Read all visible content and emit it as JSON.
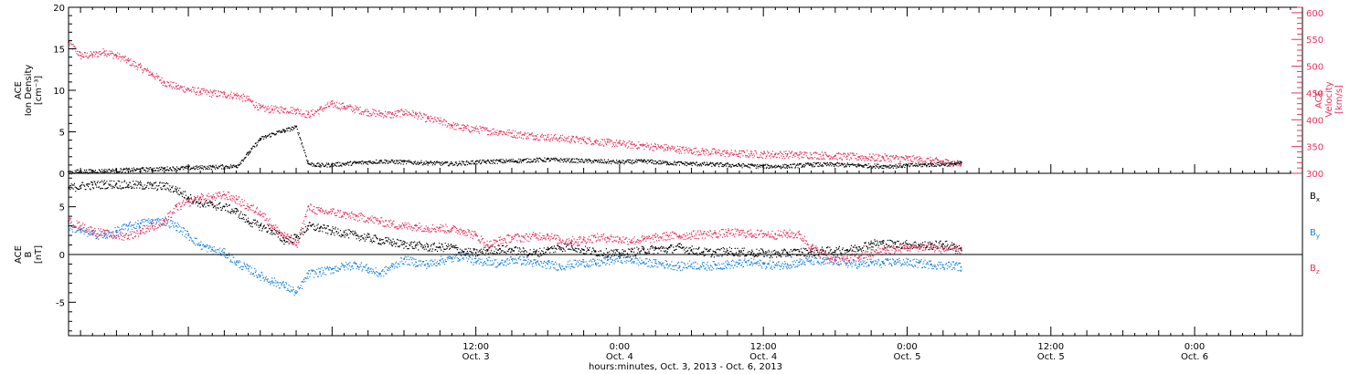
{
  "chart_data": [
    {
      "type": "scatter",
      "panel": "top",
      "ylabel_left": [
        "ACE",
        "Ion Density",
        "[cm⁻³]"
      ],
      "ylabel_right": [
        "ACE",
        "Velocity",
        "[km/s]"
      ],
      "ylim_left": [
        0,
        20
      ],
      "ylim_right": [
        300,
        610
      ],
      "yticks_left": [
        "0",
        "5",
        "10",
        "15",
        "20"
      ],
      "yticks_right": [
        "300",
        "350",
        "400",
        "450",
        "500",
        "550",
        "600"
      ],
      "series": [
        {
          "axis": "left",
          "color": "#000000",
          "x": [
            0,
            2,
            4,
            6,
            8,
            10,
            12,
            14,
            15,
            16,
            17,
            18,
            19,
            20,
            21,
            22,
            24,
            26,
            28,
            30,
            32,
            34,
            36,
            38,
            40,
            42,
            44,
            46,
            48,
            50,
            52,
            54,
            56,
            58,
            60,
            62,
            64,
            66,
            68,
            70,
            72,
            74,
            74.5
          ],
          "values": [
            0.2,
            0.3,
            0.4,
            0.5,
            0.6,
            0.7,
            0.8,
            0.9,
            2.5,
            4.2,
            4.8,
            5.2,
            5.6,
            1.2,
            1.0,
            1.1,
            1.3,
            1.5,
            1.4,
            1.3,
            1.2,
            1.4,
            1.5,
            1.6,
            1.7,
            1.6,
            1.5,
            1.4,
            1.5,
            1.3,
            1.2,
            1.1,
            1.0,
            0.9,
            0.9,
            1.1,
            1.1,
            1.0,
            0.9,
            1.0,
            1.1,
            1.2,
            1.3
          ]
        },
        {
          "axis": "right",
          "color": "#e8335f",
          "x": [
            0,
            1,
            2,
            3,
            4,
            5,
            6,
            7,
            8,
            9,
            10,
            11,
            12,
            13,
            14,
            15,
            16,
            17,
            18,
            19,
            20,
            21,
            22,
            23,
            24,
            25,
            26,
            27,
            28,
            29,
            30,
            31,
            32,
            33,
            34,
            35,
            36,
            37,
            38,
            39,
            40,
            41,
            42,
            43,
            44,
            45,
            46,
            47,
            48,
            49,
            50,
            51,
            52,
            53,
            54,
            55,
            56,
            57,
            58,
            59,
            60,
            61,
            62,
            63,
            64,
            65,
            66,
            67,
            68,
            69,
            70,
            71,
            72,
            73,
            74,
            74.5
          ],
          "values": [
            545,
            520,
            522,
            528,
            520,
            510,
            498,
            485,
            470,
            462,
            457,
            453,
            450,
            448,
            446,
            438,
            422,
            420,
            420,
            418,
            410,
            420,
            430,
            425,
            420,
            415,
            412,
            410,
            415,
            410,
            402,
            398,
            390,
            385,
            383,
            380,
            378,
            375,
            372,
            370,
            368,
            366,
            364,
            363,
            360,
            358,
            356,
            354,
            352,
            350,
            348,
            345,
            343,
            341,
            340,
            338,
            337,
            337,
            336,
            336,
            336,
            335,
            335,
            334,
            333,
            332,
            331,
            330,
            330,
            329,
            328,
            326,
            324,
            322,
            320,
            316
          ]
        }
      ]
    },
    {
      "type": "scatter",
      "panel": "bottom",
      "ylabel_left": [
        "ACE",
        "B",
        "[nT]"
      ],
      "ylim": [
        -8.5,
        8.5
      ],
      "yticks": [
        "-5",
        "0",
        "5"
      ],
      "legend": [
        "Bₓ",
        "Bᵧ",
        "B_z"
      ],
      "legend_labels": [
        [
          "B",
          "x"
        ],
        [
          "B",
          "y"
        ],
        [
          "B",
          "z"
        ]
      ],
      "series": [
        {
          "name": "Bx",
          "color": "#000000",
          "x": [
            0,
            1,
            2,
            3,
            4,
            5,
            6,
            7,
            8,
            9,
            10,
            11,
            12,
            13,
            14,
            15,
            16,
            17,
            18,
            19,
            20,
            21,
            22,
            23,
            24,
            25,
            26,
            27,
            28,
            29,
            30,
            31,
            32,
            33,
            34,
            35,
            36,
            37,
            38,
            39,
            40,
            41,
            42,
            43,
            44,
            45,
            46,
            47,
            48,
            49,
            50,
            51,
            52,
            53,
            54,
            55,
            56,
            57,
            58,
            59,
            60,
            61,
            62,
            63,
            64,
            65,
            66,
            67,
            68,
            69,
            70,
            71,
            72,
            73,
            74,
            74.5
          ],
          "values": [
            7.0,
            7.2,
            7.3,
            7.4,
            7.4,
            7.3,
            7.3,
            7.2,
            7.2,
            6.8,
            6.0,
            5.4,
            5.2,
            5.0,
            4.5,
            3.5,
            3.0,
            2.5,
            1.5,
            1.8,
            3.0,
            2.8,
            2.5,
            2.3,
            2.0,
            1.8,
            1.5,
            1.3,
            1.1,
            1.0,
            0.8,
            0.8,
            0.8,
            0.3,
            0.2,
            0.5,
            0.6,
            0.5,
            0.3,
            0.2,
            0.5,
            0.8,
            0.9,
            0.5,
            0.3,
            0.2,
            0.1,
            0.3,
            0.5,
            0.6,
            0.6,
            0.8,
            0.5,
            0.3,
            0.2,
            0.4,
            0.3,
            0.2,
            0.2,
            0.1,
            0.2,
            0.3,
            0.3,
            0.4,
            0.4,
            0.5,
            0.8,
            1.2,
            1.2,
            1.1,
            1.1,
            1.0,
            1.0,
            1.1,
            0.8,
            0.7
          ]
        },
        {
          "name": "By",
          "color": "#1a82dc",
          "x": [
            0,
            1,
            2,
            3,
            4,
            5,
            6,
            7,
            8,
            9,
            10,
            11,
            12,
            13,
            14,
            15,
            16,
            17,
            18,
            19,
            20,
            21,
            22,
            23,
            24,
            25,
            26,
            27,
            28,
            29,
            30,
            31,
            32,
            33,
            34,
            35,
            36,
            37,
            38,
            39,
            40,
            41,
            42,
            43,
            44,
            45,
            46,
            47,
            48,
            49,
            50,
            51,
            52,
            53,
            54,
            55,
            56,
            57,
            58,
            59,
            60,
            61,
            62,
            63,
            64,
            65,
            66,
            67,
            68,
            69,
            70,
            71,
            72,
            73,
            74,
            74.5
          ],
          "values": [
            3.0,
            2.5,
            2.2,
            2.0,
            2.5,
            3.0,
            3.3,
            3.5,
            3.5,
            3.0,
            2.0,
            1.0,
            0.5,
            0.2,
            -0.8,
            -1.5,
            -2.2,
            -2.8,
            -3.2,
            -4.0,
            -2.0,
            -1.8,
            -1.5,
            -1.2,
            -1.0,
            -1.5,
            -2.0,
            -1.2,
            -0.5,
            -0.8,
            -1.0,
            -0.6,
            -0.4,
            0.0,
            -0.8,
            -0.6,
            -1.0,
            -0.5,
            -0.6,
            -0.9,
            -1.0,
            -1.2,
            -1.0,
            -0.8,
            -0.9,
            -0.6,
            -0.4,
            -0.5,
            -0.8,
            -0.9,
            -1.0,
            -1.2,
            -1.0,
            -1.2,
            -1.1,
            -1.0,
            -0.9,
            -0.8,
            -1.0,
            -1.1,
            -1.0,
            -0.8,
            -0.6,
            -0.8,
            -0.6,
            -0.9,
            -1.0,
            -0.8,
            -0.9,
            -0.7,
            -0.8,
            -0.9,
            -1.0,
            -1.1,
            -1.1,
            -1.3
          ]
        },
        {
          "name": "Bz",
          "color": "#e8335f",
          "x": [
            0,
            1,
            2,
            3,
            4,
            5,
            6,
            7,
            8,
            9,
            10,
            11,
            12,
            13,
            14,
            15,
            16,
            17,
            18,
            19,
            20,
            21,
            22,
            23,
            24,
            25,
            26,
            27,
            28,
            29,
            30,
            31,
            32,
            33,
            34,
            35,
            36,
            37,
            38,
            39,
            40,
            41,
            42,
            43,
            44,
            45,
            46,
            47,
            48,
            49,
            50,
            51,
            52,
            53,
            54,
            55,
            56,
            57,
            58,
            59,
            60,
            61,
            62,
            63,
            64,
            65,
            66,
            67,
            68,
            69,
            70,
            71,
            72,
            73,
            74,
            74.5
          ],
          "values": [
            3.5,
            3.0,
            2.5,
            2.2,
            2.0,
            2.0,
            2.5,
            3.0,
            3.5,
            5.0,
            5.5,
            6.0,
            6.0,
            6.3,
            5.8,
            5.0,
            4.5,
            3.0,
            2.0,
            1.0,
            5.0,
            4.5,
            4.5,
            4.2,
            4.0,
            3.8,
            3.5,
            3.2,
            3.0,
            3.0,
            2.8,
            2.8,
            2.7,
            2.5,
            2.0,
            1.0,
            1.5,
            1.8,
            1.8,
            2.0,
            2.0,
            1.5,
            1.5,
            1.6,
            1.8,
            1.8,
            1.6,
            1.5,
            1.6,
            1.8,
            2.0,
            2.0,
            2.1,
            2.2,
            2.2,
            2.3,
            2.3,
            2.2,
            2.2,
            2.1,
            2.2,
            2.1,
            0.8,
            0.0,
            -0.5,
            -0.4,
            -0.2,
            0.2,
            0.5,
            0.6,
            0.8,
            0.8,
            0.8,
            0.6,
            0.6,
            0.5
          ]
        }
      ]
    }
  ],
  "xaxis": {
    "start": "2013-10-02 02:00",
    "end": "2013-10-06 09:00",
    "ticks": [
      {
        "at": "2013-10-03 12:00",
        "time": "12:00",
        "date": "Oct. 3"
      },
      {
        "at": "2013-10-04 00:00",
        "time": "0:00",
        "date": "Oct. 4"
      },
      {
        "at": "2013-10-04 12:00",
        "time": "12:00",
        "date": "Oct. 4"
      },
      {
        "at": "2013-10-05 00:00",
        "time": "0:00",
        "date": "Oct. 5"
      },
      {
        "at": "2013-10-05 12:00",
        "time": "12:00",
        "date": "Oct. 5"
      },
      {
        "at": "2013-10-06 00:00",
        "time": "0:00",
        "date": "Oct. 6"
      }
    ],
    "xlabel": "hours:minutes, Oct.  3, 2013 - Oct.  6, 2013"
  }
}
